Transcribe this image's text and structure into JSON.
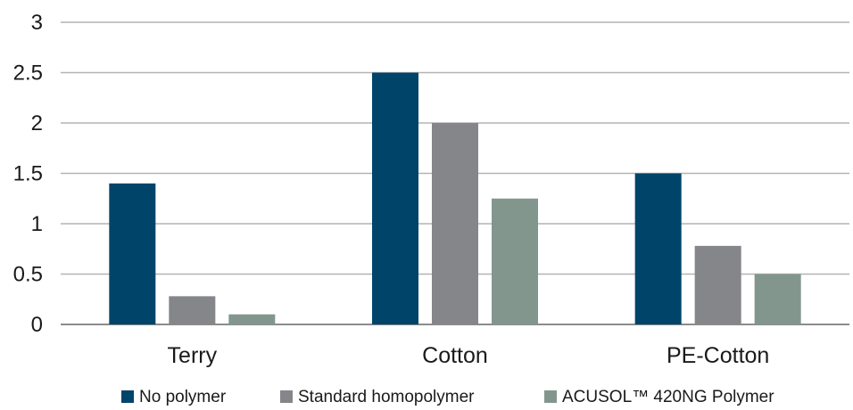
{
  "chart_data": {
    "type": "bar",
    "title": "",
    "xlabel": "",
    "ylabel": "",
    "categories": [
      "Terry",
      "Cotton",
      "PE-Cotton"
    ],
    "series": [
      {
        "name": "No polymer",
        "values": [
          1.4,
          2.5,
          1.5
        ],
        "color": "#00446a"
      },
      {
        "name": "Standard homopolymer",
        "values": [
          0.28,
          2.0,
          0.78
        ],
        "color": "#858689"
      },
      {
        "name": "ACUSOL™ 420NG Polymer",
        "values": [
          0.1,
          1.25,
          0.5
        ],
        "color": "#82968e"
      }
    ],
    "ylim": [
      0,
      3
    ],
    "yticks": [
      0,
      0.5,
      1,
      1.5,
      2,
      2.5,
      3
    ],
    "ytick_labels": [
      "0",
      "0.5",
      "1",
      "1.5",
      "2",
      "2.5",
      "3"
    ],
    "grid": true,
    "legend_position": "bottom"
  }
}
